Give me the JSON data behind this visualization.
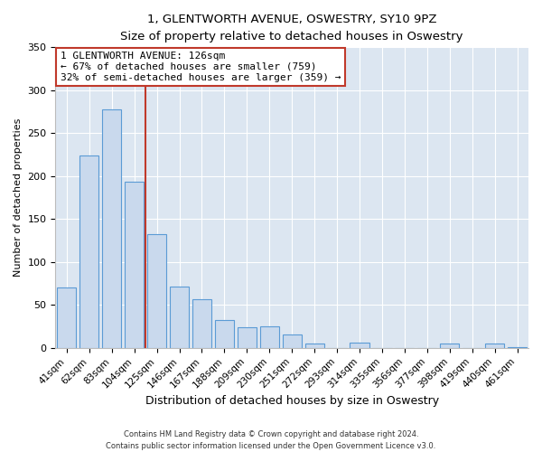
{
  "title": "1, GLENTWORTH AVENUE, OSWESTRY, SY10 9PZ",
  "subtitle": "Size of property relative to detached houses in Oswestry",
  "xlabel": "Distribution of detached houses by size in Oswestry",
  "ylabel": "Number of detached properties",
  "categories": [
    "41sqm",
    "62sqm",
    "83sqm",
    "104sqm",
    "125sqm",
    "146sqm",
    "167sqm",
    "188sqm",
    "209sqm",
    "230sqm",
    "251sqm",
    "272sqm",
    "293sqm",
    "314sqm",
    "335sqm",
    "356sqm",
    "377sqm",
    "398sqm",
    "419sqm",
    "440sqm",
    "461sqm"
  ],
  "values": [
    70,
    224,
    278,
    193,
    133,
    71,
    57,
    33,
    24,
    25,
    16,
    5,
    0,
    6,
    0,
    0,
    0,
    5,
    0,
    5,
    1
  ],
  "bar_color": "#c9d9ed",
  "bar_edge_color": "#5b9bd5",
  "marker_line_color": "#c0392b",
  "annotation_label": "1 GLENTWORTH AVENUE: 126sqm",
  "annotation_line1": "← 67% of detached houses are smaller (759)",
  "annotation_line2": "32% of semi-detached houses are larger (359) →",
  "annotation_box_color": "#c0392b",
  "ylim": [
    0,
    350
  ],
  "footnote1": "Contains HM Land Registry data © Crown copyright and database right 2024.",
  "footnote2": "Contains public sector information licensed under the Open Government Licence v3.0.",
  "fig_background": "#ffffff",
  "plot_background": "#dce6f1"
}
